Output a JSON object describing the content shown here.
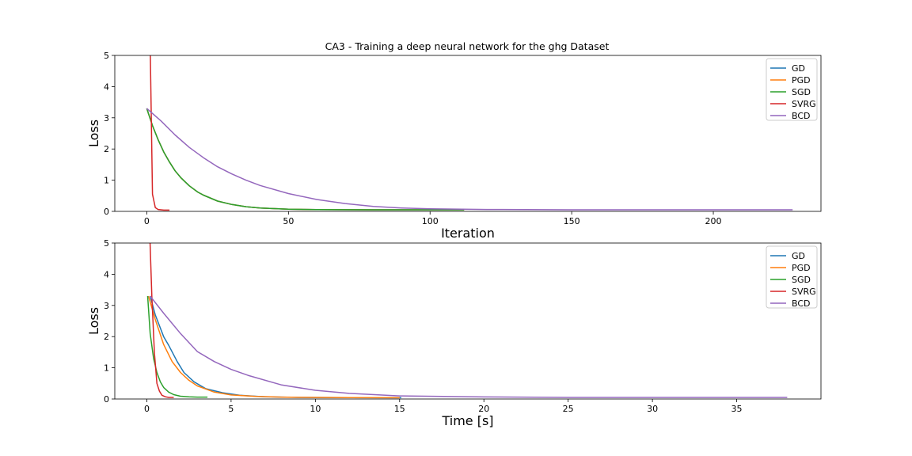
{
  "figure": {
    "title": "CA3 - Training a deep neural network for the ghg Dataset"
  },
  "colors": {
    "GD": "#1f77b4",
    "PGD": "#ff7f0e",
    "SGD": "#2ca02c",
    "SVRG": "#d62728",
    "BCD": "#9467bd"
  },
  "chart_data": [
    {
      "type": "line",
      "title": "CA3 - Training a deep neural network for the ghg Dataset",
      "xlabel": "Iteration",
      "ylabel": "Loss",
      "xlim": [
        -11.3,
        238
      ],
      "ylim": [
        0,
        5
      ],
      "xticks": [
        0,
        50,
        100,
        150,
        200
      ],
      "yticks": [
        0,
        1,
        2,
        3,
        4,
        5
      ],
      "grid": false,
      "legend": "top-right",
      "series": [
        {
          "name": "GD",
          "color": "#1f77b4",
          "x": [
            0,
            2,
            4,
            6,
            8,
            10,
            12,
            15,
            18,
            20,
            25,
            30,
            35,
            40,
            50,
            60,
            80,
            100,
            112
          ],
          "y": [
            3.3,
            2.75,
            2.3,
            1.9,
            1.58,
            1.3,
            1.08,
            0.82,
            0.62,
            0.52,
            0.33,
            0.22,
            0.15,
            0.11,
            0.07,
            0.055,
            0.05,
            0.05,
            0.05
          ]
        },
        {
          "name": "PGD",
          "color": "#ff7f0e",
          "x": [
            0,
            2,
            4,
            6,
            8,
            10,
            12,
            15,
            18,
            20,
            25,
            30,
            35,
            40,
            50,
            60,
            80,
            100,
            112
          ],
          "y": [
            3.3,
            2.75,
            2.3,
            1.9,
            1.58,
            1.3,
            1.08,
            0.82,
            0.62,
            0.52,
            0.33,
            0.22,
            0.15,
            0.11,
            0.07,
            0.055,
            0.05,
            0.05,
            0.05
          ]
        },
        {
          "name": "SGD",
          "color": "#2ca02c",
          "x": [
            0,
            2,
            4,
            6,
            8,
            10,
            12,
            15,
            18,
            20,
            25,
            30,
            35,
            40,
            50,
            60,
            80,
            100,
            112
          ],
          "y": [
            3.3,
            2.75,
            2.3,
            1.9,
            1.58,
            1.3,
            1.08,
            0.82,
            0.62,
            0.52,
            0.33,
            0.22,
            0.15,
            0.11,
            0.07,
            0.055,
            0.05,
            0.05,
            0.05
          ]
        },
        {
          "name": "SVRG",
          "color": "#d62728",
          "x": [
            1,
            2,
            3,
            4,
            5,
            6,
            8
          ],
          "y": [
            6.5,
            0.55,
            0.12,
            0.06,
            0.05,
            0.04,
            0.04
          ]
        },
        {
          "name": "BCD",
          "color": "#9467bd",
          "x": [
            0,
            5,
            10,
            15,
            20,
            25,
            30,
            35,
            40,
            50,
            60,
            70,
            80,
            90,
            100,
            120,
            150,
            200,
            228
          ],
          "y": [
            3.3,
            2.9,
            2.45,
            2.05,
            1.72,
            1.43,
            1.2,
            1.0,
            0.83,
            0.57,
            0.38,
            0.25,
            0.16,
            0.11,
            0.08,
            0.06,
            0.05,
            0.05,
            0.05
          ]
        }
      ]
    },
    {
      "type": "line",
      "title": "",
      "xlabel": "Time [s]",
      "ylabel": "Loss",
      "xlim": [
        -1.9,
        40
      ],
      "ylim": [
        0,
        5
      ],
      "xticks": [
        0,
        5,
        10,
        15,
        20,
        25,
        30,
        35
      ],
      "yticks": [
        0,
        1,
        2,
        3,
        4,
        5
      ],
      "grid": false,
      "legend": "top-right",
      "series": [
        {
          "name": "GD",
          "color": "#1f77b4",
          "x": [
            0.2,
            0.5,
            1.0,
            1.3,
            1.8,
            2.2,
            2.8,
            3.5,
            4.5,
            5.5,
            7,
            9,
            12,
            15.1
          ],
          "y": [
            3.3,
            2.7,
            2.0,
            1.72,
            1.2,
            0.85,
            0.55,
            0.33,
            0.2,
            0.12,
            0.07,
            0.05,
            0.045,
            0.04
          ]
        },
        {
          "name": "PGD",
          "color": "#ff7f0e",
          "x": [
            0.1,
            0.5,
            1.0,
            1.5,
            2.0,
            2.5,
            3.0,
            4.0,
            5.0,
            6.5,
            8,
            10,
            12,
            15
          ],
          "y": [
            3.3,
            2.55,
            1.75,
            1.2,
            0.85,
            0.6,
            0.42,
            0.22,
            0.13,
            0.08,
            0.06,
            0.05,
            0.045,
            0.04
          ]
        },
        {
          "name": "SGD",
          "color": "#2ca02c",
          "x": [
            0.05,
            0.2,
            0.4,
            0.6,
            0.8,
            1.0,
            1.3,
            1.6,
            2.0,
            2.5,
            3.0,
            3.6
          ],
          "y": [
            3.3,
            2.1,
            1.3,
            0.85,
            0.55,
            0.37,
            0.22,
            0.14,
            0.09,
            0.07,
            0.06,
            0.06
          ]
        },
        {
          "name": "SVRG",
          "color": "#d62728",
          "x": [
            0.1,
            0.3,
            0.45,
            0.6,
            0.75,
            0.9,
            1.1,
            1.3,
            1.6
          ],
          "y": [
            6.5,
            3.3,
            1.5,
            0.5,
            0.25,
            0.12,
            0.07,
            0.05,
            0.05
          ]
        },
        {
          "name": "BCD",
          "color": "#9467bd",
          "x": [
            0.2,
            1,
            2,
            3,
            4,
            5,
            6,
            8,
            10,
            12,
            15,
            20,
            25,
            30,
            38
          ],
          "y": [
            3.3,
            2.75,
            2.1,
            1.52,
            1.2,
            0.95,
            0.76,
            0.45,
            0.28,
            0.18,
            0.1,
            0.065,
            0.05,
            0.05,
            0.05
          ]
        }
      ]
    }
  ]
}
